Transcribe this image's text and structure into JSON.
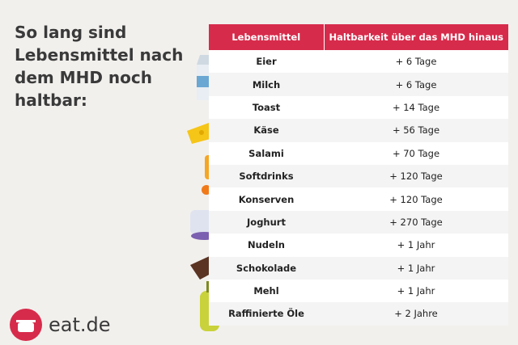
{
  "header": {
    "title_lines": [
      "So lang sind",
      "Lebensmittel nach",
      "dem MHD noch",
      "haltbar:"
    ]
  },
  "table": {
    "columns": [
      "Lebensmittel",
      "Haltbarkeit über das MHD hinaus"
    ],
    "rows": [
      [
        "Eier",
        "+ 6 Tage"
      ],
      [
        "Milch",
        "+ 6 Tage"
      ],
      [
        "Toast",
        "+ 14 Tage"
      ],
      [
        "Käse",
        "+ 56 Tage"
      ],
      [
        "Salami",
        "+ 70 Tage"
      ],
      [
        "Softdrinks",
        "+ 120 Tage"
      ],
      [
        "Konserven",
        "+ 120 Tage"
      ],
      [
        "Joghurt",
        "+ 270 Tage"
      ],
      [
        "Nudeln",
        "+ 1 Jahr"
      ],
      [
        "Schokolade",
        "+ 1 Jahr"
      ],
      [
        "Mehl",
        "+ 1 Jahr"
      ],
      [
        "Raffinierte Öle",
        "+ 2 Jahre"
      ]
    ]
  },
  "logo": {
    "text": "eat.de"
  }
}
